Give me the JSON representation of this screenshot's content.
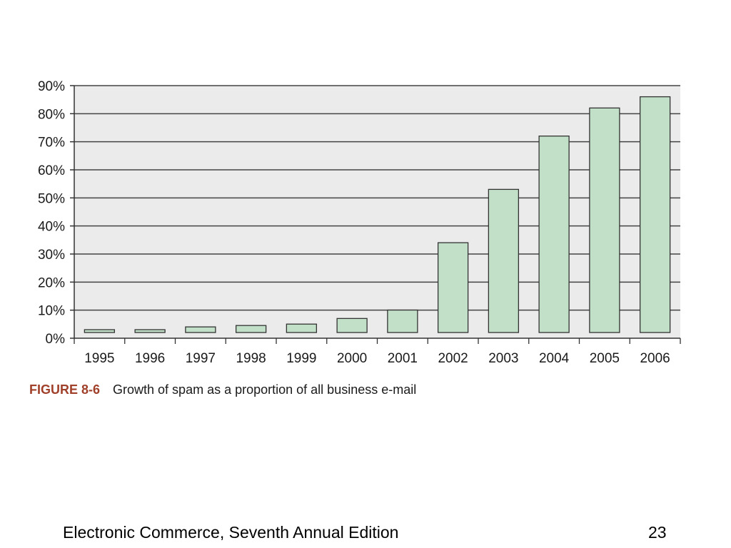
{
  "chart_data": {
    "type": "bar",
    "categories": [
      "1995",
      "1996",
      "1997",
      "1998",
      "1999",
      "2000",
      "2001",
      "2002",
      "2003",
      "2004",
      "2005",
      "2006"
    ],
    "values": [
      1,
      1,
      2,
      2.5,
      3,
      5,
      8,
      32,
      51,
      70,
      80,
      84
    ],
    "y_ticks": [
      "0%",
      "10%",
      "20%",
      "30%",
      "40%",
      "50%",
      "60%",
      "70%",
      "80%",
      "90%"
    ],
    "ylim": [
      0,
      90
    ],
    "grid": true,
    "colors": {
      "bar_fill": "#c2dfc8",
      "bar_stroke": "#333333",
      "plot_bg": "#ebebeb",
      "grid": "#444444"
    }
  },
  "caption": {
    "figure_label": "FIGURE 8-6",
    "text": "Growth of spam as a proportion of all business e-mail",
    "label_color": "#a0402a"
  },
  "footer": {
    "title": "Electronic Commerce, Seventh Annual Edition",
    "page_number": "23"
  }
}
